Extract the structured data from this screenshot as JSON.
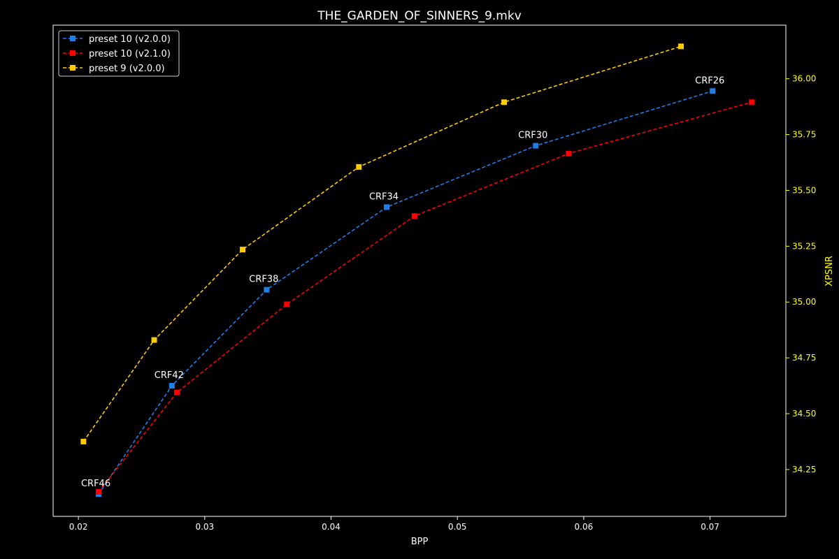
{
  "chart_data": {
    "type": "line",
    "title": "THE_GARDEN_OF_SINNERS_9.mkv",
    "xlabel": "BPP",
    "ylabel": "XPSNR",
    "xlim": [
      0.018,
      0.076
    ],
    "ylim": [
      34.04,
      36.24
    ],
    "x_ticks": [
      0.02,
      0.03,
      0.04,
      0.05,
      0.06,
      0.07
    ],
    "x_tick_labels": [
      "0.02",
      "0.03",
      "0.04",
      "0.05",
      "0.06",
      "0.07"
    ],
    "y_ticks": [
      34.25,
      34.5,
      34.75,
      35.0,
      35.25,
      35.5,
      35.75,
      36.0
    ],
    "y_tick_labels": [
      "34.25",
      "34.50",
      "34.75",
      "35.00",
      "35.25",
      "35.50",
      "35.75",
      "36.00"
    ],
    "y_axis_side": "right",
    "grid": false,
    "legend_position": "top-left",
    "series": [
      {
        "name": "preset 10 (v2.0.0)",
        "color": "#1f7fe8",
        "marker": "square",
        "linestyle": "dashed",
        "x": [
          0.0216,
          0.0274,
          0.0349,
          0.0444,
          0.0562,
          0.0702
        ],
        "y": [
          34.14,
          34.625,
          35.055,
          35.425,
          35.7,
          35.945
        ]
      },
      {
        "name": "preset 10 (v2.1.0)",
        "color": "#ff0000",
        "marker": "square",
        "linestyle": "dashed",
        "x": [
          0.0216,
          0.0278,
          0.0365,
          0.0466,
          0.0588,
          0.0733
        ],
        "y": [
          34.15,
          34.595,
          34.99,
          35.385,
          35.665,
          35.895
        ]
      },
      {
        "name": "preset 9 (v2.0.0)",
        "color": "#ffcc00",
        "marker": "square",
        "linestyle": "dashed",
        "x": [
          0.0204,
          0.026,
          0.033,
          0.0422,
          0.0537,
          0.0677
        ],
        "y": [
          34.375,
          34.83,
          35.235,
          35.605,
          35.895,
          36.145
        ]
      }
    ],
    "annotations": [
      {
        "text": "CRF46",
        "x": 0.0216,
        "y": 34.14
      },
      {
        "text": "CRF42",
        "x": 0.0274,
        "y": 34.625
      },
      {
        "text": "CRF38",
        "x": 0.0349,
        "y": 35.055
      },
      {
        "text": "CRF34",
        "x": 0.0444,
        "y": 35.425
      },
      {
        "text": "CRF30",
        "x": 0.0562,
        "y": 35.7
      },
      {
        "text": "CRF26",
        "x": 0.0702,
        "y": 35.945
      }
    ],
    "axis_text_color": "#ffffff",
    "y_axis_text_color": "#ffff00"
  }
}
